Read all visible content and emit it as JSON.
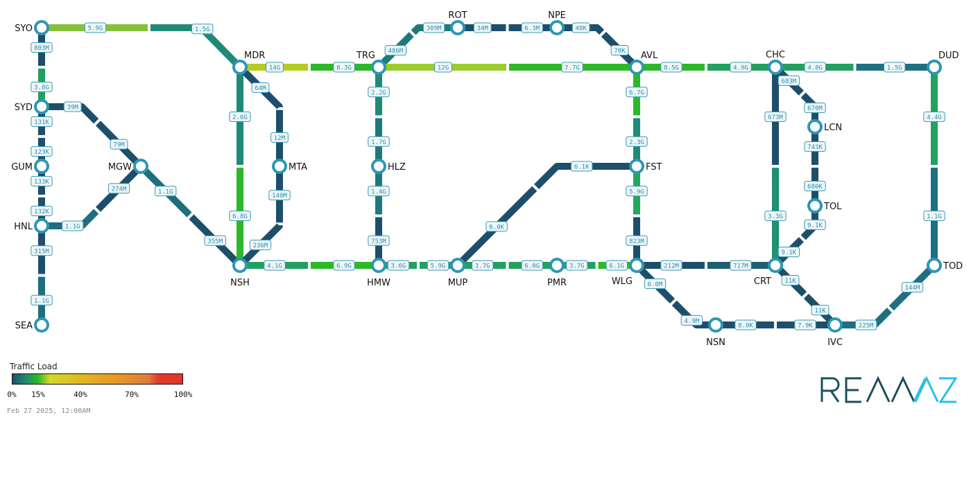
{
  "nodes": [
    "SYO",
    "SYD",
    "GUM",
    "HNL",
    "SEA",
    "MGW",
    "MDR",
    "MTA",
    "NSH",
    "TRG",
    "HLZ",
    "HMW",
    "ROT",
    "NPE",
    "AVL",
    "FST",
    "WLG",
    "MUP",
    "PMR",
    "CHC",
    "DUD",
    "LCN",
    "TOL",
    "CRT",
    "TOD",
    "NSN",
    "IVC"
  ],
  "links": [
    {
      "id": "SYO-MDR",
      "a": "SYO",
      "b": "MDR",
      "ab": {
        "value": "5.9G",
        "color": "#86c03a"
      },
      "ba": {
        "value": "1.5G",
        "color": "#1f8a78"
      }
    },
    {
      "id": "SYO-SYD",
      "a": "SYO",
      "b": "SYD",
      "ab": {
        "value": "803M",
        "color": "#1e4f6a"
      },
      "ba": {
        "value": "3.8G",
        "color": "#22a060"
      }
    },
    {
      "id": "SYD-GUM",
      "a": "SYD",
      "b": "GUM",
      "ab": {
        "value": "131K",
        "color": "#1e4f6a"
      },
      "ba": {
        "value": "123K",
        "color": "#1e4f6a"
      }
    },
    {
      "id": "GUM-HNL",
      "a": "GUM",
      "b": "HNL",
      "ab": {
        "value": "133K",
        "color": "#1e4f6a"
      },
      "ba": {
        "value": "132K",
        "color": "#1e4f6a"
      }
    },
    {
      "id": "HNL-SEA",
      "a": "HNL",
      "b": "SEA",
      "ab": {
        "value": "315M",
        "color": "#1e4f6a"
      },
      "ba": {
        "value": "1.1G",
        "color": "#1e6e7e"
      }
    },
    {
      "id": "SYD-MGW",
      "a": "SYD",
      "b": "MGW",
      "ab": {
        "value": "39M",
        "color": "#1e4f6a"
      },
      "ba": {
        "value": "79M",
        "color": "#1e4f6a"
      }
    },
    {
      "id": "HNL-MGW",
      "a": "HNL",
      "b": "MGW",
      "ab": {
        "value": "1.1G",
        "color": "#1e6e7e"
      },
      "ba": {
        "value": "274M",
        "color": "#1e4f6a"
      }
    },
    {
      "id": "MGW-NSH",
      "a": "MGW",
      "b": "NSH",
      "ab": {
        "value": "1.1G",
        "color": "#1e6e7e"
      },
      "ba": {
        "value": "355M",
        "color": "#1e4f6a"
      }
    },
    {
      "id": "MDR-NSH",
      "a": "MDR",
      "b": "NSH",
      "ab": {
        "value": "2.6G",
        "color": "#1f8a78"
      },
      "ba": {
        "value": "6.8G",
        "color": "#2db82a"
      }
    },
    {
      "id": "MDR-MTA",
      "a": "MDR",
      "b": "MTA",
      "ab": {
        "value": "64M",
        "color": "#1e4f6a"
      },
      "ba": {
        "value": "12M",
        "color": "#1e4f6a"
      }
    },
    {
      "id": "MTA-NSH",
      "a": "MTA",
      "b": "NSH",
      "ab": {
        "value": "140M",
        "color": "#1e4f6a"
      },
      "ba": {
        "value": "236M",
        "color": "#1e4f6a"
      }
    },
    {
      "id": "MDR-TRG",
      "a": "MDR",
      "b": "TRG",
      "ab": {
        "value": "14G",
        "color": "#b5cc22"
      },
      "ba": {
        "value": "8.3G",
        "color": "#2db82a"
      }
    },
    {
      "id": "NSH-HMW",
      "a": "NSH",
      "b": "HMW",
      "ab": {
        "value": "4.1G",
        "color": "#22a060"
      },
      "ba": {
        "value": "6.9G",
        "color": "#2db82a"
      }
    },
    {
      "id": "TRG-HLZ",
      "a": "TRG",
      "b": "HLZ",
      "ab": {
        "value": "2.2G",
        "color": "#1f8a78"
      },
      "ba": {
        "value": "1.7G",
        "color": "#1e7a7a"
      }
    },
    {
      "id": "HLZ-HMW",
      "a": "HLZ",
      "b": "HMW",
      "ab": {
        "value": "1.4G",
        "color": "#1e7a7a"
      },
      "ba": {
        "value": "753M",
        "color": "#1e4f6a"
      }
    },
    {
      "id": "TRG-ROT",
      "a": "TRG",
      "b": "ROT",
      "ab": {
        "value": "486M",
        "color": "#1e7a7a"
      },
      "ba": {
        "value": "309M",
        "color": "#1e7a7a"
      }
    },
    {
      "id": "ROT-NPE",
      "a": "ROT",
      "b": "NPE",
      "ab": {
        "value": "34M",
        "color": "#1e4f6a"
      },
      "ba": {
        "value": "6.3M",
        "color": "#1e4f6a"
      }
    },
    {
      "id": "NPE-AVL",
      "a": "NPE",
      "b": "AVL",
      "ab": {
        "value": "48K",
        "color": "#1e4f6a"
      },
      "ba": {
        "value": "70K",
        "color": "#1e4f6a"
      }
    },
    {
      "id": "TRG-AVL",
      "a": "TRG",
      "b": "AVL",
      "ab": {
        "value": "12G",
        "color": "#9ccc2a"
      },
      "ba": {
        "value": "7.7G",
        "color": "#2db82a"
      }
    },
    {
      "id": "AVL-CHC",
      "a": "AVL",
      "b": "CHC",
      "ab": {
        "value": "8.5G",
        "color": "#2db82a"
      },
      "ba": {
        "value": "4.9G",
        "color": "#22a060"
      }
    },
    {
      "id": "AVL-FST",
      "a": "AVL",
      "b": "FST",
      "ab": {
        "value": "6.7G",
        "color": "#2db82a"
      },
      "ba": {
        "value": "2.3G",
        "color": "#1f8a78"
      }
    },
    {
      "id": "FST-WLG",
      "a": "FST",
      "b": "WLG",
      "ab": {
        "value": "5.9G",
        "color": "#22a860"
      },
      "ba": {
        "value": "823M",
        "color": "#1e4f6a"
      }
    },
    {
      "id": "FST-MUP",
      "a": "FST",
      "b": "MUP",
      "ab": {
        "value": "6.1K",
        "color": "#1e4f6a"
      },
      "ba": {
        "value": "6.0K",
        "color": "#1e4f6a"
      }
    },
    {
      "id": "HMW-MUP",
      "a": "HMW",
      "b": "MUP",
      "ab": {
        "value": "3.6G",
        "color": "#22a060"
      },
      "ba": {
        "value": "5.9G",
        "color": "#22a060"
      }
    },
    {
      "id": "MUP-PMR",
      "a": "MUP",
      "b": "PMR",
      "ab": {
        "value": "3.7G",
        "color": "#22a060"
      },
      "ba": {
        "value": "6.0G",
        "color": "#22a060"
      }
    },
    {
      "id": "PMR-WLG",
      "a": "PMR",
      "b": "WLG",
      "ab": {
        "value": "3.7G",
        "color": "#22a060"
      },
      "ba": {
        "value": "6.1G",
        "color": "#2db82a"
      }
    },
    {
      "id": "WLG-CRT",
      "a": "WLG",
      "b": "CRT",
      "ab": {
        "value": "212M",
        "color": "#1e4f6a"
      },
      "ba": {
        "value": "717M",
        "color": "#1e6070"
      }
    },
    {
      "id": "WLG-NSN",
      "a": "WLG",
      "b": "NSN",
      "ab": {
        "value": "6.0M",
        "color": "#1e4f6a"
      },
      "ba": {
        "value": "4.9M",
        "color": "#1e4f6a"
      }
    },
    {
      "id": "CHC-DUD",
      "a": "CHC",
      "b": "DUD",
      "ab": {
        "value": "4.8G",
        "color": "#22a060"
      },
      "ba": {
        "value": "1.5G",
        "color": "#1e7080"
      }
    },
    {
      "id": "CHC-CRT",
      "a": "CHC",
      "b": "CRT",
      "ab": {
        "value": "673M",
        "color": "#1e4f6a"
      },
      "ba": {
        "value": "3.3G",
        "color": "#1f9070"
      }
    },
    {
      "id": "CHC-LCN",
      "a": "CHC",
      "b": "LCN",
      "ab": {
        "value": "683M",
        "color": "#1e4f6a"
      },
      "ba": {
        "value": "670M",
        "color": "#1e4f6a"
      }
    },
    {
      "id": "LCN-TOL",
      "a": "LCN",
      "b": "TOL",
      "ab": {
        "value": "743K",
        "color": "#1e4f6a"
      },
      "ba": {
        "value": "680K",
        "color": "#1e4f6a"
      }
    },
    {
      "id": "TOL-CRT",
      "a": "TOL",
      "b": "CRT",
      "ab": {
        "value": "9.1K",
        "color": "#1e4f6a"
      },
      "ba": {
        "value": "9.1K",
        "color": "#1e4f6a"
      }
    },
    {
      "id": "DUD-TOD",
      "a": "DUD",
      "b": "TOD",
      "ab": {
        "value": "4.4G",
        "color": "#22a060"
      },
      "ba": {
        "value": "1.1G",
        "color": "#1e7080"
      }
    },
    {
      "id": "CRT-IVC",
      "a": "CRT",
      "b": "IVC",
      "ab": {
        "value": "11K",
        "color": "#1e4f6a"
      },
      "ba": {
        "value": "11K",
        "color": "#1e4f6a"
      }
    },
    {
      "id": "NSN-IVC",
      "a": "NSN",
      "b": "IVC",
      "ab": {
        "value": "8.0K",
        "color": "#1e4f6a"
      },
      "ba": {
        "value": "7.9K",
        "color": "#1e4f6a"
      }
    },
    {
      "id": "IVC-TOD",
      "a": "IVC",
      "b": "TOD",
      "ab": {
        "value": "225M",
        "color": "#1e7080"
      },
      "ba": {
        "value": "144M",
        "color": "#1e7080"
      }
    }
  ],
  "legend": {
    "title": "Traffic Load",
    "ticks": [
      "0%",
      "15%",
      "40%",
      "70%",
      "100%"
    ],
    "tick_values": [
      0,
      15,
      40,
      70,
      100
    ],
    "colors": [
      "#1e4f6a",
      "#1f8c70",
      "#2db82a",
      "#d6d82a",
      "#e89a25",
      "#e03a2c"
    ]
  },
  "timestamp": "Feb 27 2025, 12:00AM",
  "logo": {
    "text": "REANNZ",
    "dark": "#1d4f5c",
    "light": "#29c0e6"
  },
  "node_style": {
    "ring": "#2f96b4",
    "fill": "#ffffff"
  }
}
